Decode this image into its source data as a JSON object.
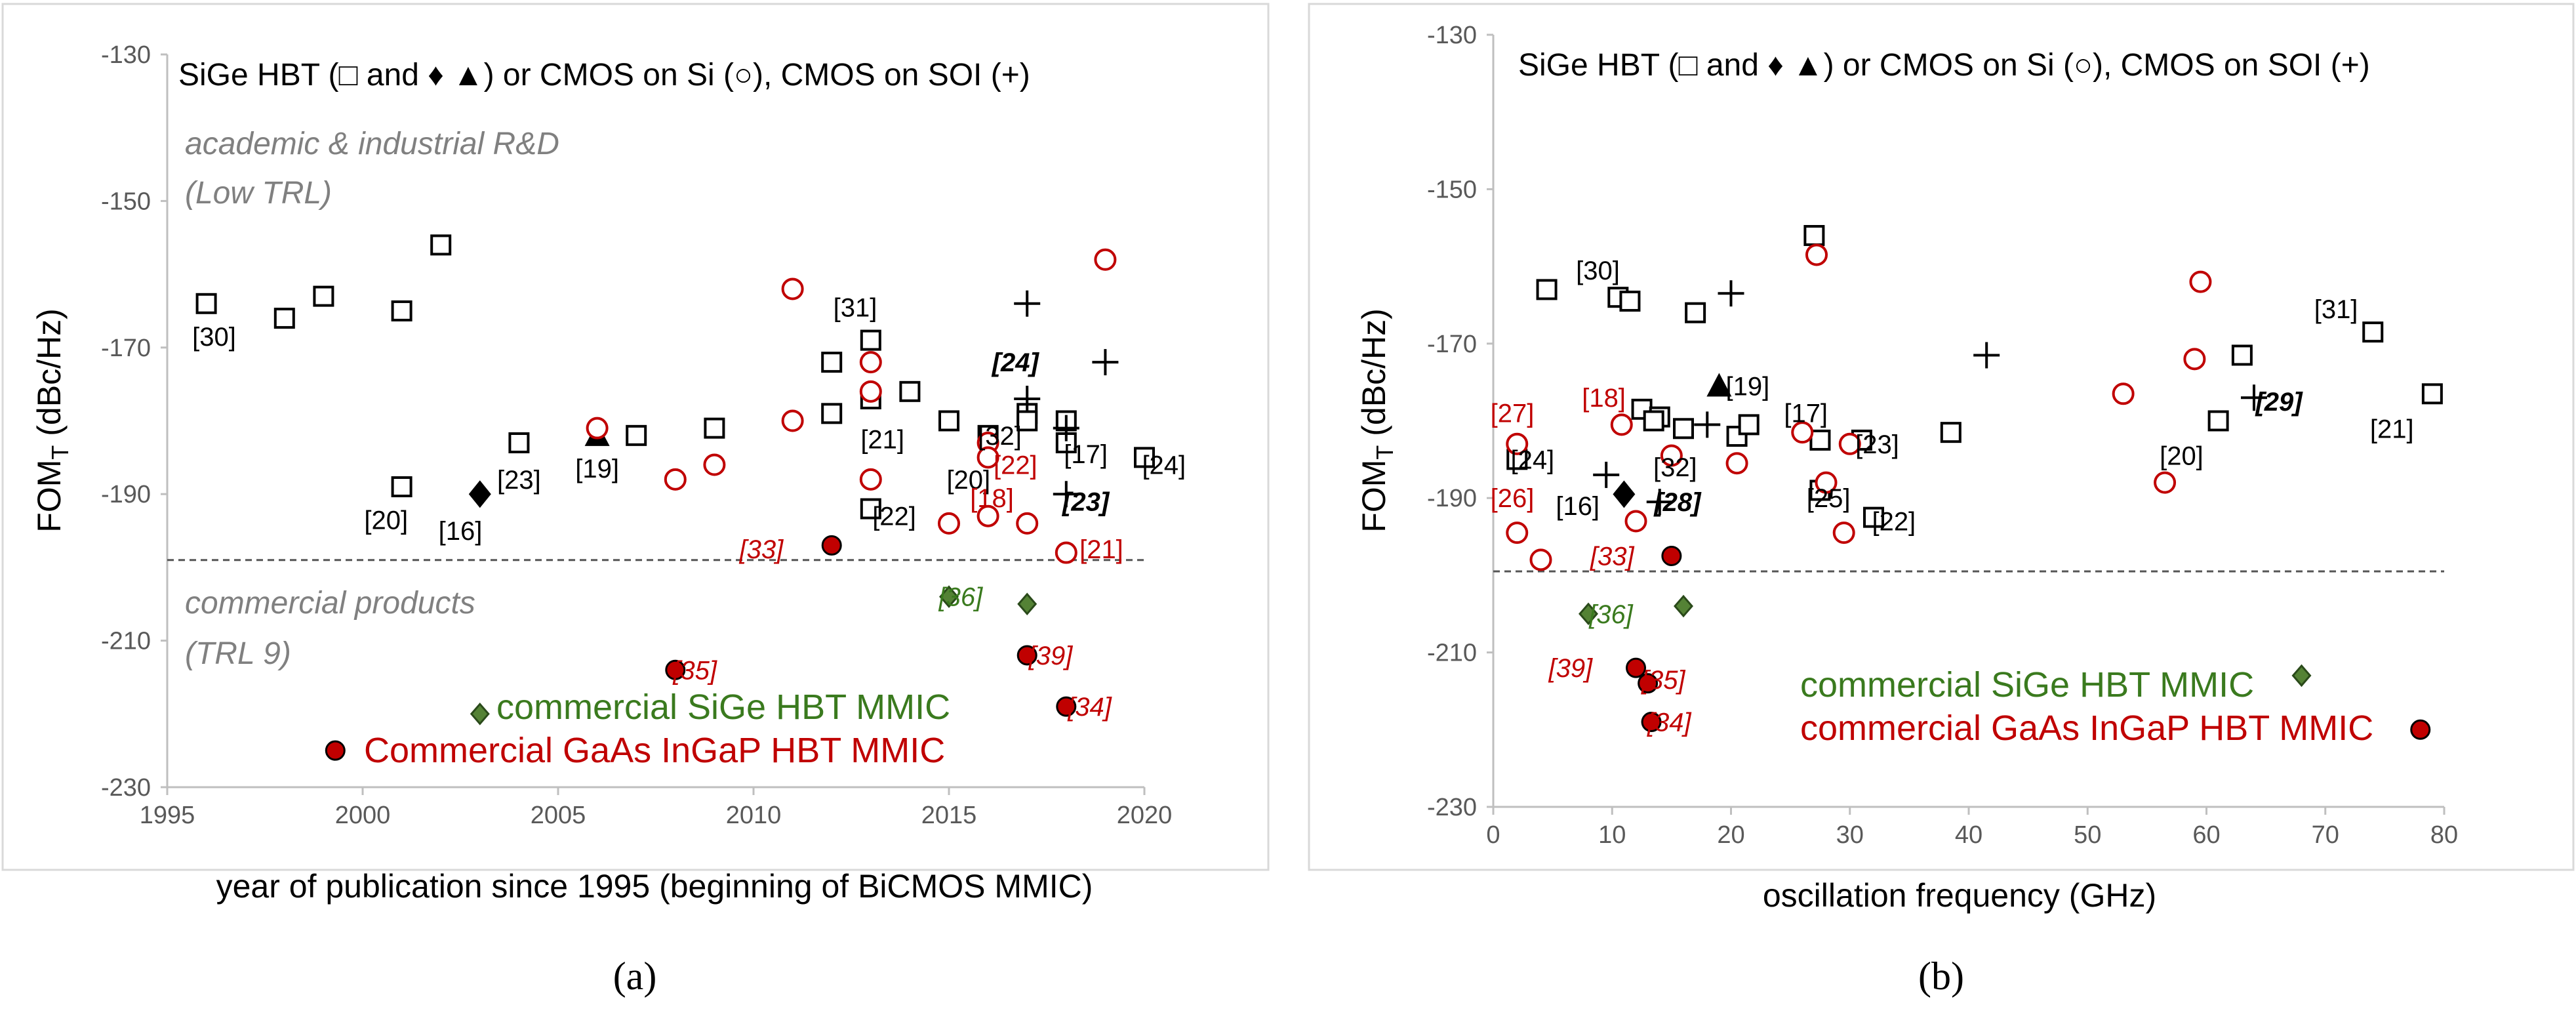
{
  "colors": {
    "hbt": "#000000",
    "cmos": "#c00000",
    "sige_mmic": "#548235",
    "gaas_mmic": "#c00000",
    "threshold": "#555555"
  },
  "chart_data": [
    {
      "id": "a",
      "type": "scatter",
      "panel_label": "(a)",
      "legend_text": "SiGe HBT (□ and ♦ ▲) or CMOS on Si (○), CMOS on SOI (+)",
      "xlabel": "year of publication since 1995 (beginning of BiCMOS MMIC)",
      "ylabel_main": "FOM",
      "ylabel_sub": "T",
      "ylabel_unit": " (dBc/Hz)",
      "xlim": [
        1995,
        2020
      ],
      "ylim": [
        -230,
        -130
      ],
      "xticks": [
        1995,
        2000,
        2005,
        2010,
        2015,
        2020
      ],
      "yticks": [
        -230,
        -210,
        -190,
        -170,
        -150,
        -130
      ],
      "threshold": -199,
      "zone_top": [
        "academic & industrial  R&D",
        "(Low TRL)"
      ],
      "zone_bottom": [
        "commercial products",
        "(TRL 9)"
      ],
      "sige_mmic_label": "commercial SiGe HBT MMIC",
      "gaas_mmic_label": "Commercial GaAs InGaP HBT MMIC",
      "points": [
        {
          "m": "sq",
          "x": 1996,
          "y": -164
        },
        {
          "m": "sq",
          "x": 1998,
          "y": -166
        },
        {
          "m": "sq",
          "x": 1999,
          "y": -163
        },
        {
          "m": "sq",
          "x": 2001,
          "y": -165
        },
        {
          "m": "sq",
          "x": 2001,
          "y": -189
        },
        {
          "m": "sq",
          "x": 2002,
          "y": -156
        },
        {
          "m": "sq",
          "x": 2004,
          "y": -183
        },
        {
          "m": "sq",
          "x": 2007,
          "y": -182
        },
        {
          "m": "sq",
          "x": 2009,
          "y": -181
        },
        {
          "m": "sq",
          "x": 2012,
          "y": -172
        },
        {
          "m": "sq",
          "x": 2012,
          "y": -179
        },
        {
          "m": "sq",
          "x": 2013,
          "y": -169
        },
        {
          "m": "sq",
          "x": 2013,
          "y": -177
        },
        {
          "m": "sq",
          "x": 2013,
          "y": -192
        },
        {
          "m": "sq",
          "x": 2014,
          "y": -176
        },
        {
          "m": "sq",
          "x": 2015,
          "y": -180
        },
        {
          "m": "sq",
          "x": 2016,
          "y": -182
        },
        {
          "m": "sq",
          "x": 2017,
          "y": -179
        },
        {
          "m": "sq",
          "x": 2017,
          "y": -180
        },
        {
          "m": "sq",
          "x": 2018,
          "y": -180
        },
        {
          "m": "sq",
          "x": 2018,
          "y": -183
        },
        {
          "m": "sq",
          "x": 2020,
          "y": -185
        },
        {
          "m": "dia",
          "x": 2003,
          "y": -190
        },
        {
          "m": "tri",
          "x": 2006,
          "y": -182
        },
        {
          "m": "ci",
          "x": 2006,
          "y": -181
        },
        {
          "m": "ci",
          "x": 2008,
          "y": -188
        },
        {
          "m": "ci",
          "x": 2009,
          "y": -186
        },
        {
          "m": "ci",
          "x": 2011,
          "y": -162
        },
        {
          "m": "ci",
          "x": 2011,
          "y": -180
        },
        {
          "m": "ci",
          "x": 2013,
          "y": -172
        },
        {
          "m": "ci",
          "x": 2013,
          "y": -176
        },
        {
          "m": "ci",
          "x": 2013,
          "y": -188
        },
        {
          "m": "ci",
          "x": 2015,
          "y": -194
        },
        {
          "m": "ci",
          "x": 2016,
          "y": -183
        },
        {
          "m": "ci",
          "x": 2016,
          "y": -185
        },
        {
          "m": "ci",
          "x": 2016,
          "y": -193
        },
        {
          "m": "ci",
          "x": 2017,
          "y": -194
        },
        {
          "m": "ci",
          "x": 2018,
          "y": -198
        },
        {
          "m": "ci",
          "x": 2019,
          "y": -158
        },
        {
          "m": "pl",
          "x": 2017,
          "y": -164
        },
        {
          "m": "pl",
          "x": 2017,
          "y": -177
        },
        {
          "m": "pl",
          "x": 2018,
          "y": -181
        },
        {
          "m": "pl",
          "x": 2018,
          "y": -190
        },
        {
          "m": "pl",
          "x": 2019,
          "y": -172
        },
        {
          "m": "gd",
          "x": 2003,
          "y": -220
        },
        {
          "m": "gd",
          "x": 2015,
          "y": -204
        },
        {
          "m": "gd",
          "x": 2017,
          "y": -205
        },
        {
          "m": "rd",
          "x": 1999.3,
          "y": -225
        },
        {
          "m": "rd",
          "x": 2008,
          "y": -214
        },
        {
          "m": "rd",
          "x": 2012,
          "y": -197
        },
        {
          "m": "rd",
          "x": 2017,
          "y": -212
        },
        {
          "m": "rd",
          "x": 2018,
          "y": -219
        }
      ],
      "labels": [
        {
          "t": "[30]",
          "x": 1996.2,
          "y": -168.5,
          "c": "k"
        },
        {
          "t": "[20]",
          "x": 2000.6,
          "y": -193.5,
          "c": "k"
        },
        {
          "t": "[16]",
          "x": 2002.5,
          "y": -195,
          "c": "k"
        },
        {
          "t": "[23]",
          "x": 2004.0,
          "y": -188,
          "c": "k"
        },
        {
          "t": "[19]",
          "x": 2006.0,
          "y": -186.5,
          "c": "k"
        },
        {
          "t": "[31]",
          "x": 2012.6,
          "y": -164.5,
          "c": "k"
        },
        {
          "t": "[21]",
          "x": 2013.3,
          "y": -182.5,
          "c": "k"
        },
        {
          "t": "[22]",
          "x": 2013.6,
          "y": -193,
          "c": "k"
        },
        {
          "t": "[20]",
          "x": 2015.5,
          "y": -188,
          "c": "k"
        },
        {
          "t": "[32]",
          "x": 2016.3,
          "y": -182,
          "c": "k"
        },
        {
          "t": "[17]",
          "x": 2018.5,
          "y": -184.5,
          "c": "k"
        },
        {
          "t": "[24]",
          "x": 2020.5,
          "y": -186,
          "c": "k"
        },
        {
          "t": "[24]",
          "x": 2016.7,
          "y": -172,
          "c": "kb"
        },
        {
          "t": "[23]",
          "x": 2018.5,
          "y": -191,
          "c": "kb"
        },
        {
          "t": "[22]",
          "x": 2016.7,
          "y": -186,
          "c": "r"
        },
        {
          "t": "[18]",
          "x": 2016.1,
          "y": -190.5,
          "c": "r"
        },
        {
          "t": "[21]",
          "x": 2018.9,
          "y": -197.5,
          "c": "r"
        },
        {
          "t": "[33]",
          "x": 2010.2,
          "y": -197.5,
          "c": "ri"
        },
        {
          "t": "[35]",
          "x": 2008.5,
          "y": -214,
          "c": "ri"
        },
        {
          "t": "[39]",
          "x": 2017.6,
          "y": -212,
          "c": "ri"
        },
        {
          "t": "[34]",
          "x": 2018.6,
          "y": -219,
          "c": "ri"
        },
        {
          "t": "[36]",
          "x": 2015.3,
          "y": -204,
          "c": "g"
        }
      ]
    },
    {
      "id": "b",
      "type": "scatter",
      "panel_label": "(b)",
      "legend_text": "SiGe HBT (□ and ♦ ▲) or CMOS on Si (○), CMOS on SOI (+)",
      "xlabel": "oscillation frequency (GHz)",
      "ylabel_main": "FOM",
      "ylabel_sub": "T",
      "ylabel_unit": " (dBc/Hz)",
      "xlim": [
        0,
        80
      ],
      "ylim": [
        -230,
        -130
      ],
      "xticks": [
        0,
        10,
        20,
        30,
        40,
        50,
        60,
        70,
        80
      ],
      "yticks": [
        -230,
        -210,
        -190,
        -170,
        -150,
        -130
      ],
      "threshold": -199.5,
      "sige_mmic_label": "commercial SiGe HBT MMIC",
      "gaas_mmic_label": "commercial GaAs InGaP HBT MMIC",
      "points": [
        {
          "m": "sq",
          "x": 27,
          "y": -156
        },
        {
          "m": "sq",
          "x": 4.5,
          "y": -163
        },
        {
          "m": "sq",
          "x": 10.5,
          "y": -164
        },
        {
          "m": "sq",
          "x": 11.5,
          "y": -164.5
        },
        {
          "m": "sq",
          "x": 17,
          "y": -166
        },
        {
          "m": "sq",
          "x": 12.5,
          "y": -178.5
        },
        {
          "m": "sq",
          "x": 14,
          "y": -179.5
        },
        {
          "m": "sq",
          "x": 13.5,
          "y": -180
        },
        {
          "m": "sq",
          "x": 16,
          "y": -181
        },
        {
          "m": "sq",
          "x": 20.5,
          "y": -182
        },
        {
          "m": "sq",
          "x": 21.5,
          "y": -180.5
        },
        {
          "m": "sq",
          "x": 2,
          "y": -185
        },
        {
          "m": "sq",
          "x": 27.5,
          "y": -182.5
        },
        {
          "m": "sq",
          "x": 31,
          "y": -182.5
        },
        {
          "m": "sq",
          "x": 38.5,
          "y": -181.5
        },
        {
          "m": "sq",
          "x": 27.5,
          "y": -189
        },
        {
          "m": "sq",
          "x": 32,
          "y": -192.5
        },
        {
          "m": "sq",
          "x": 61,
          "y": -180
        },
        {
          "m": "sq",
          "x": 63,
          "y": -171.5
        },
        {
          "m": "sq",
          "x": 74,
          "y": -168.5
        },
        {
          "m": "sq",
          "x": 79,
          "y": -176.5
        },
        {
          "m": "dia",
          "x": 11,
          "y": -189.5
        },
        {
          "m": "tri",
          "x": 19,
          "y": -175.5
        },
        {
          "m": "ci",
          "x": 27.2,
          "y": -158.5
        },
        {
          "m": "ci",
          "x": 59.5,
          "y": -162
        },
        {
          "m": "ci",
          "x": 59,
          "y": -172
        },
        {
          "m": "ci",
          "x": 53,
          "y": -176.5
        },
        {
          "m": "ci",
          "x": 56.5,
          "y": -188
        },
        {
          "m": "ci",
          "x": 10.8,
          "y": -180.5
        },
        {
          "m": "ci",
          "x": 2,
          "y": -183
        },
        {
          "m": "ci",
          "x": 2,
          "y": -194.5
        },
        {
          "m": "ci",
          "x": 4,
          "y": -198
        },
        {
          "m": "ci",
          "x": 12,
          "y": -193
        },
        {
          "m": "ci",
          "x": 15,
          "y": -184.5
        },
        {
          "m": "ci",
          "x": 20.5,
          "y": -185.5
        },
        {
          "m": "ci",
          "x": 26,
          "y": -181.5
        },
        {
          "m": "ci",
          "x": 30,
          "y": -183
        },
        {
          "m": "ci",
          "x": 28,
          "y": -188
        },
        {
          "m": "ci",
          "x": 29.5,
          "y": -194.5
        },
        {
          "m": "pl",
          "x": 20,
          "y": -163.5
        },
        {
          "m": "pl",
          "x": 41.5,
          "y": -171.5
        },
        {
          "m": "pl",
          "x": 64,
          "y": -177
        },
        {
          "m": "pl",
          "x": 18,
          "y": -180.5
        },
        {
          "m": "pl",
          "x": 9.5,
          "y": -187
        },
        {
          "m": "pl",
          "x": 14,
          "y": -190.5
        },
        {
          "m": "gd",
          "x": 8,
          "y": -205
        },
        {
          "m": "gd",
          "x": 16,
          "y": -204
        },
        {
          "m": "gd",
          "x": 68,
          "y": -213
        },
        {
          "m": "rd",
          "x": 15,
          "y": -197.5
        },
        {
          "m": "rd",
          "x": 12,
          "y": -212
        },
        {
          "m": "rd",
          "x": 13,
          "y": -214
        },
        {
          "m": "rd",
          "x": 13.3,
          "y": -219
        },
        {
          "m": "rd",
          "x": 78,
          "y": -220
        }
      ],
      "labels": [
        {
          "t": "[30]",
          "x": 8.8,
          "y": -160.5,
          "c": "k"
        },
        {
          "t": "[19]",
          "x": 21.4,
          "y": -175.5,
          "c": "k"
        },
        {
          "t": "[17]",
          "x": 26.3,
          "y": -179,
          "c": "k"
        },
        {
          "t": "[23]",
          "x": 32.3,
          "y": -183,
          "c": "k"
        },
        {
          "t": "[24]",
          "x": 3.3,
          "y": -185,
          "c": "k"
        },
        {
          "t": "[32]",
          "x": 15.3,
          "y": -186,
          "c": "k"
        },
        {
          "t": "[16]",
          "x": 7.1,
          "y": -191,
          "c": "k"
        },
        {
          "t": "[25]",
          "x": 28.2,
          "y": -190,
          "c": "k"
        },
        {
          "t": "[22]",
          "x": 33.7,
          "y": -193,
          "c": "k"
        },
        {
          "t": "[20]",
          "x": 57.9,
          "y": -184.5,
          "c": "k"
        },
        {
          "t": "[31]",
          "x": 70.9,
          "y": -165.5,
          "c": "k"
        },
        {
          "t": "[21]",
          "x": 75.6,
          "y": -181,
          "c": "k"
        },
        {
          "t": "[28]",
          "x": 15.5,
          "y": -190.5,
          "c": "kb"
        },
        {
          "t": "[29]",
          "x": 66.1,
          "y": -177.5,
          "c": "kb"
        },
        {
          "t": "[27]",
          "x": 1.6,
          "y": -179,
          "c": "r"
        },
        {
          "t": "[18]",
          "x": 9.3,
          "y": -177,
          "c": "r"
        },
        {
          "t": "[26]",
          "x": 1.6,
          "y": -190,
          "c": "r"
        },
        {
          "t": "[33]",
          "x": 10.0,
          "y": -197.5,
          "c": "ri"
        },
        {
          "t": "[39]",
          "x": 6.5,
          "y": -212,
          "c": "ri"
        },
        {
          "t": "[35]",
          "x": 14.3,
          "y": -213.5,
          "c": "ri"
        },
        {
          "t": "[34]",
          "x": 14.8,
          "y": -219,
          "c": "ri"
        },
        {
          "t": "[36]",
          "x": 9.9,
          "y": -205,
          "c": "g"
        }
      ]
    }
  ]
}
